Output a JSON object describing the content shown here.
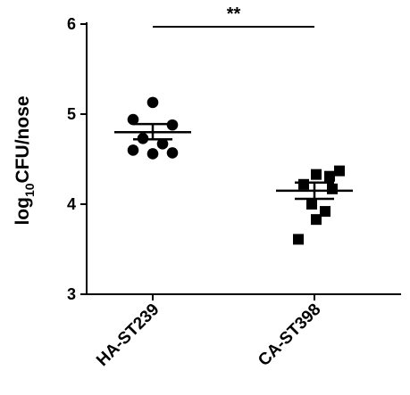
{
  "chart_data": {
    "type": "scatter",
    "ylabel_main": "log",
    "ylabel_sub": "10",
    "ylabel_rest": "CFU/nose",
    "ylim": [
      3,
      6
    ],
    "yticks": [
      "3",
      "4",
      "5",
      "6"
    ],
    "categories": [
      "HA-ST239",
      "CA-ST398"
    ],
    "series": [
      {
        "marker": "circle",
        "values": [
          5.13,
          4.94,
          4.88,
          4.73,
          4.67,
          4.6,
          4.57,
          4.56
        ],
        "mean": 4.8,
        "sem_upper": 4.89,
        "sem_lower": 4.72
      },
      {
        "marker": "square",
        "values": [
          4.37,
          4.33,
          4.31,
          4.22,
          4.17,
          4.0,
          3.92,
          3.83,
          3.61
        ],
        "mean": 4.15,
        "sem_upper": 4.24,
        "sem_lower": 4.06
      }
    ],
    "significance": {
      "label": "**",
      "between": [
        0,
        1
      ],
      "y": 5.97
    },
    "colors": {
      "marker": "#000000",
      "axis": "#000000"
    }
  }
}
